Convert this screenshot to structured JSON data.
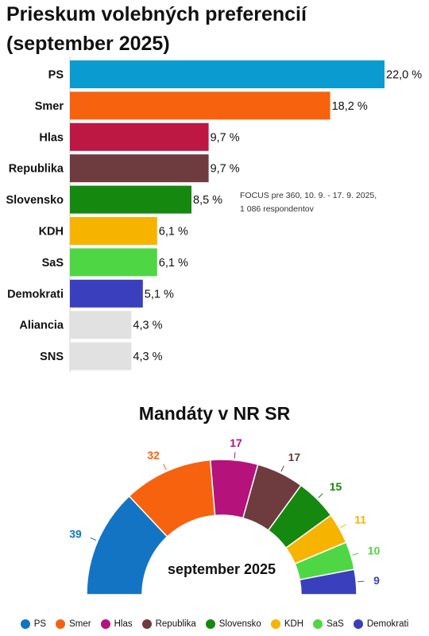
{
  "title_lines": [
    "Prieskum volebných preferencií",
    "(september 2025)"
  ],
  "note_lines": [
    "FOCUS pre 360, 10. 9. - 17. 9. 2025,",
    "1 086 respondentov"
  ],
  "chart_data": [
    {
      "type": "bar",
      "orientation": "horizontal",
      "title": "Prieskum volebných preferencií (september 2025)",
      "categories": [
        "PS",
        "Smer",
        "Hlas",
        "Republika",
        "Slovensko",
        "KDH",
        "SaS",
        "Demokrati",
        "Aliancia",
        "SNS"
      ],
      "values": [
        22.0,
        18.2,
        9.7,
        9.7,
        8.5,
        6.1,
        6.1,
        5.1,
        4.3,
        4.3
      ],
      "labels": [
        "22,0 %",
        "18,2 %",
        "9,7 %",
        "9,7 %",
        "8,5 %",
        "6,1 %",
        "6,1 %",
        "5,1 %",
        "4,3 %",
        "4,3 %"
      ],
      "colors": [
        "#0a9bd0",
        "#f7620f",
        "#bd1743",
        "#6e3b3e",
        "#15880f",
        "#f6b400",
        "#4fd644",
        "#3a3fbd",
        "#e1e1e1",
        "#e1e1e1"
      ],
      "xlim": [
        0,
        22.0
      ]
    },
    {
      "type": "pie",
      "subtype": "semicircle",
      "title": "Mandáty v NR SR",
      "center_label": "september 2025",
      "categories": [
        "PS",
        "Smer",
        "Hlas",
        "Republika",
        "Slovensko",
        "KDH",
        "SaS",
        "Demokrati"
      ],
      "values": [
        39,
        32,
        17,
        17,
        15,
        11,
        10,
        9
      ],
      "colors": [
        "#1474c4",
        "#f7620f",
        "#b5127c",
        "#6e3b3e",
        "#15880f",
        "#f6b400",
        "#4fd644",
        "#3a3fbd"
      ],
      "label_colors": [
        "#1474c4",
        "#f7620f",
        "#b5127c",
        "#6e3b3e",
        "#15880f",
        "#f6b400",
        "#4fd644",
        "#3a3fbd"
      ],
      "legend": "bottom"
    }
  ]
}
